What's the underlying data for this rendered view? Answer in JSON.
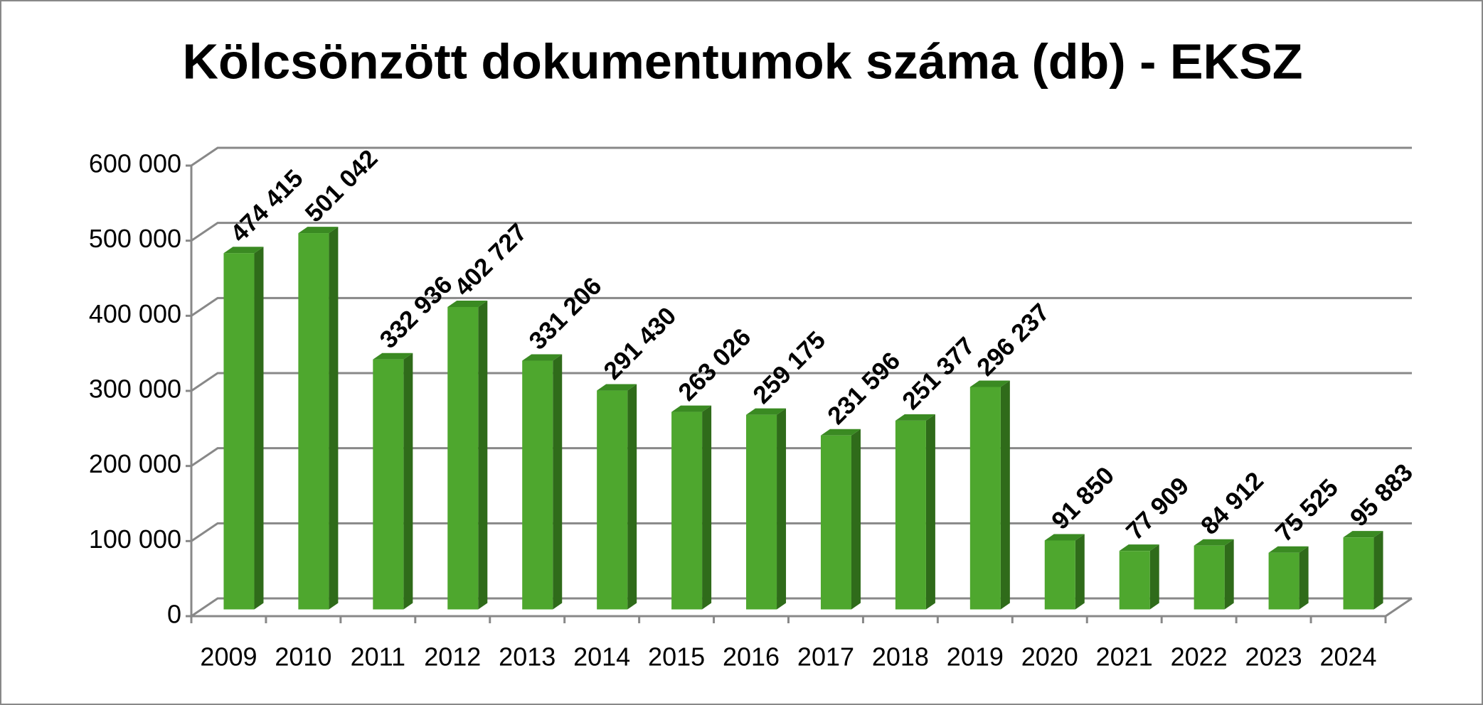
{
  "chart_data": {
    "type": "bar",
    "title": "Kölcsönzött dokumentumok száma (db) - EKSZ",
    "categories": [
      "2009",
      "2010",
      "2011",
      "2012",
      "2013",
      "2014",
      "2015",
      "2016",
      "2017",
      "2018",
      "2019",
      "2020",
      "2021",
      "2022",
      "2023",
      "2024"
    ],
    "values": [
      474415,
      501042,
      332936,
      402727,
      331206,
      291430,
      263026,
      259175,
      231596,
      251377,
      296237,
      91850,
      77909,
      84912,
      75525,
      95883
    ],
    "value_labels": [
      "474 415",
      "501 042",
      "332 936",
      "402 727",
      "331 206",
      "291 430",
      "263 026",
      "259 175",
      "231 596",
      "251 377",
      "296 237",
      "91 850",
      "77 909",
      "84 912",
      "75 525",
      "95 883"
    ],
    "color": "#4ea72e",
    "ylim": [
      0,
      600000
    ],
    "yticks": [
      0,
      {
        "value": 100000,
        "label": "100 000"
      },
      {
        "value": 200000,
        "label": "200 000"
      },
      {
        "value": 300000,
        "label": "300 000"
      },
      {
        "value": 400000,
        "label": "400 000"
      },
      {
        "value": 500000,
        "label": "500 000"
      },
      {
        "value": 600000,
        "label": "600 000"
      }
    ],
    "grid": true
  }
}
